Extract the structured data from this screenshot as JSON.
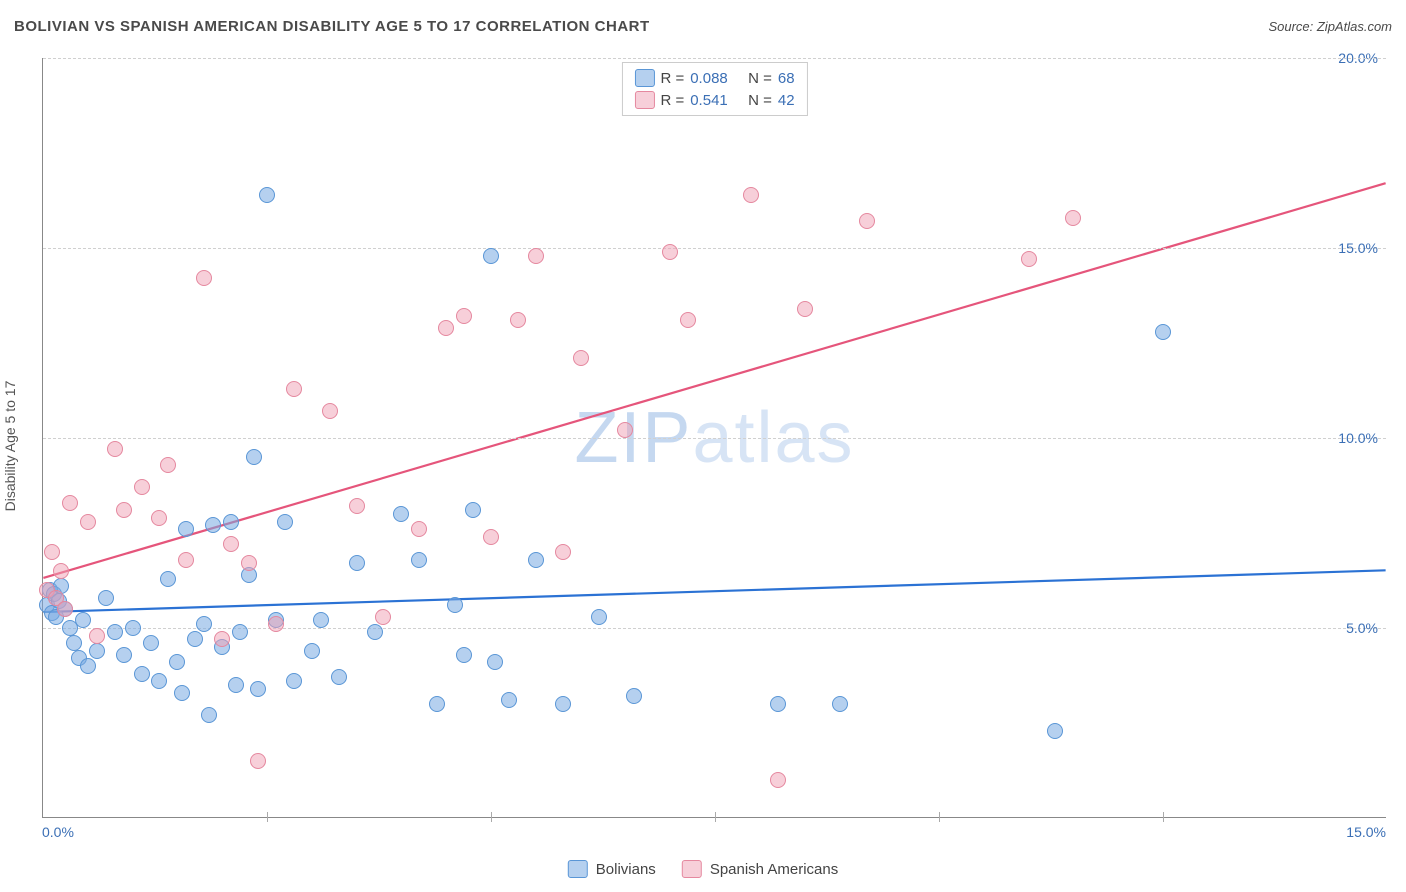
{
  "title": "BOLIVIAN VS SPANISH AMERICAN DISABILITY AGE 5 TO 17 CORRELATION CHART",
  "source": "Source: ZipAtlas.com",
  "ylabel": "Disability Age 5 to 17",
  "watermark_a": "ZIP",
  "watermark_b": "atlas",
  "chart": {
    "type": "scatter",
    "xlim": [
      0,
      15
    ],
    "ylim": [
      0,
      20
    ],
    "yticks": [
      5,
      10,
      15,
      20
    ],
    "ytick_labels": [
      "5.0%",
      "10.0%",
      "15.0%",
      "20.0%"
    ],
    "xticks_minor": [
      2.5,
      5,
      7.5,
      10,
      12.5
    ],
    "xtick_low": "0.0%",
    "xtick_high": "15.0%",
    "background_color": "#ffffff",
    "grid_color": "#d0d0d0",
    "marker_size": 16,
    "marker_opacity": 0.55
  },
  "series": [
    {
      "name": "Bolivians",
      "R": "0.088",
      "N": "68",
      "fill": "#9bc0e8",
      "stroke": "#5a96d6",
      "trend_color": "#2b72d4",
      "trend": {
        "y0": 5.4,
        "y1": 6.5
      },
      "points": [
        [
          0.05,
          5.6
        ],
        [
          0.08,
          6.0
        ],
        [
          0.1,
          5.4
        ],
        [
          0.12,
          5.9
        ],
        [
          0.15,
          5.3
        ],
        [
          0.18,
          5.7
        ],
        [
          0.2,
          6.1
        ],
        [
          0.25,
          5.5
        ],
        [
          0.3,
          5.0
        ],
        [
          0.35,
          4.6
        ],
        [
          0.4,
          4.2
        ],
        [
          0.45,
          5.2
        ],
        [
          0.5,
          4.0
        ],
        [
          0.6,
          4.4
        ],
        [
          0.7,
          5.8
        ],
        [
          0.8,
          4.9
        ],
        [
          0.9,
          4.3
        ],
        [
          1.0,
          5.0
        ],
        [
          1.1,
          3.8
        ],
        [
          1.2,
          4.6
        ],
        [
          1.3,
          3.6
        ],
        [
          1.4,
          6.3
        ],
        [
          1.5,
          4.1
        ],
        [
          1.55,
          3.3
        ],
        [
          1.6,
          7.6
        ],
        [
          1.7,
          4.7
        ],
        [
          1.8,
          5.1
        ],
        [
          1.85,
          2.7
        ],
        [
          1.9,
          7.7
        ],
        [
          2.0,
          4.5
        ],
        [
          2.1,
          7.8
        ],
        [
          2.15,
          3.5
        ],
        [
          2.2,
          4.9
        ],
        [
          2.3,
          6.4
        ],
        [
          2.35,
          9.5
        ],
        [
          2.4,
          3.4
        ],
        [
          2.5,
          16.4
        ],
        [
          2.6,
          5.2
        ],
        [
          2.7,
          7.8
        ],
        [
          2.8,
          3.6
        ],
        [
          3.0,
          4.4
        ],
        [
          3.1,
          5.2
        ],
        [
          3.3,
          3.7
        ],
        [
          3.5,
          6.7
        ],
        [
          3.7,
          4.9
        ],
        [
          4.0,
          8.0
        ],
        [
          4.2,
          6.8
        ],
        [
          4.4,
          3.0
        ],
        [
          4.6,
          5.6
        ],
        [
          4.7,
          4.3
        ],
        [
          4.8,
          8.1
        ],
        [
          5.0,
          14.8
        ],
        [
          5.05,
          4.1
        ],
        [
          5.2,
          3.1
        ],
        [
          5.5,
          6.8
        ],
        [
          5.8,
          3.0
        ],
        [
          6.2,
          5.3
        ],
        [
          6.6,
          3.2
        ],
        [
          8.2,
          3.0
        ],
        [
          8.9,
          3.0
        ],
        [
          11.3,
          2.3
        ],
        [
          12.5,
          12.8
        ]
      ]
    },
    {
      "name": "Spanish Americans",
      "R": "0.541",
      "N": "42",
      "fill": "#f4b4c4",
      "stroke": "#e5889f",
      "trend_color": "#e5557b",
      "trend": {
        "y0": 6.3,
        "y1": 16.7
      },
      "points": [
        [
          0.05,
          6.0
        ],
        [
          0.1,
          7.0
        ],
        [
          0.15,
          5.8
        ],
        [
          0.2,
          6.5
        ],
        [
          0.25,
          5.5
        ],
        [
          0.3,
          8.3
        ],
        [
          0.5,
          7.8
        ],
        [
          0.6,
          4.8
        ],
        [
          0.8,
          9.7
        ],
        [
          0.9,
          8.1
        ],
        [
          1.1,
          8.7
        ],
        [
          1.3,
          7.9
        ],
        [
          1.4,
          9.3
        ],
        [
          1.6,
          6.8
        ],
        [
          1.8,
          14.2
        ],
        [
          2.0,
          4.7
        ],
        [
          2.1,
          7.2
        ],
        [
          2.3,
          6.7
        ],
        [
          2.4,
          1.5
        ],
        [
          2.6,
          5.1
        ],
        [
          2.8,
          11.3
        ],
        [
          3.2,
          10.7
        ],
        [
          3.5,
          8.2
        ],
        [
          3.8,
          5.3
        ],
        [
          4.2,
          7.6
        ],
        [
          4.5,
          12.9
        ],
        [
          4.7,
          13.2
        ],
        [
          5.0,
          7.4
        ],
        [
          5.3,
          13.1
        ],
        [
          5.5,
          14.8
        ],
        [
          5.8,
          7.0
        ],
        [
          6.0,
          12.1
        ],
        [
          6.5,
          10.2
        ],
        [
          7.0,
          14.9
        ],
        [
          7.2,
          13.1
        ],
        [
          7.9,
          16.4
        ],
        [
          8.2,
          1.0
        ],
        [
          8.5,
          13.4
        ],
        [
          9.2,
          15.7
        ],
        [
          11.0,
          14.7
        ],
        [
          11.5,
          15.8
        ]
      ]
    }
  ],
  "legend_top": {
    "r_label": "R =",
    "n_label": "N ="
  },
  "legend_bottom": {
    "series_a": "Bolivians",
    "series_b": "Spanish Americans"
  }
}
